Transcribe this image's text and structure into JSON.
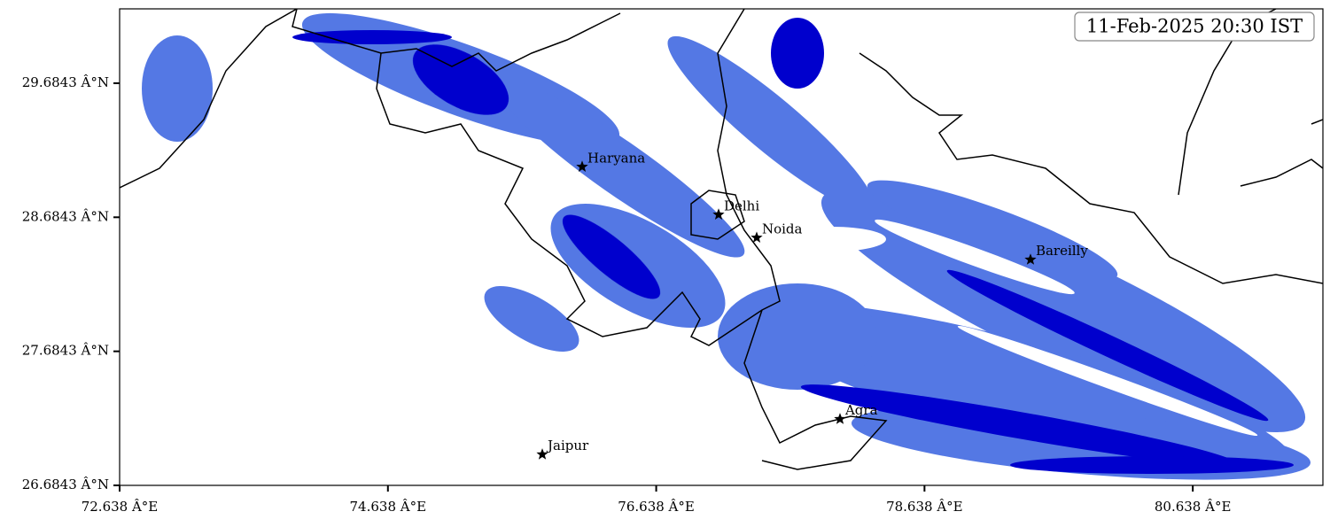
{
  "map": {
    "timestamp": "11-Feb-2025 20:30 IST",
    "xlim": [
      72.638,
      81.608
    ],
    "ylim": [
      26.6843,
      30.239
    ],
    "xticks": [
      {
        "value": 72.638,
        "label": "72.638 Â°E"
      },
      {
        "value": 74.638,
        "label": "74.638 Â°E"
      },
      {
        "value": 76.638,
        "label": "76.638 Â°E"
      },
      {
        "value": 78.638,
        "label": "78.638 Â°E"
      },
      {
        "value": 80.638,
        "label": "80.638 Â°E"
      }
    ],
    "yticks": [
      {
        "value": 26.6843,
        "label": "26.6843 Â°N"
      },
      {
        "value": 27.6843,
        "label": "27.6843 Â°N"
      },
      {
        "value": 28.6843,
        "label": "28.6843 Â°N"
      },
      {
        "value": 29.6843,
        "label": "29.6843 Â°N"
      }
    ],
    "cities": [
      {
        "name": "Haryana",
        "lon": 76.086,
        "lat": 29.061
      },
      {
        "name": "Delhi",
        "lon": 77.103,
        "lat": 28.704
      },
      {
        "name": "Noida",
        "lon": 77.387,
        "lat": 28.532
      },
      {
        "name": "Bareilly",
        "lon": 79.428,
        "lat": 28.368
      },
      {
        "name": "Agra",
        "lon": 78.008,
        "lat": 27.179
      },
      {
        "name": "Jaipur",
        "lon": 75.789,
        "lat": 26.915
      }
    ]
  }
}
